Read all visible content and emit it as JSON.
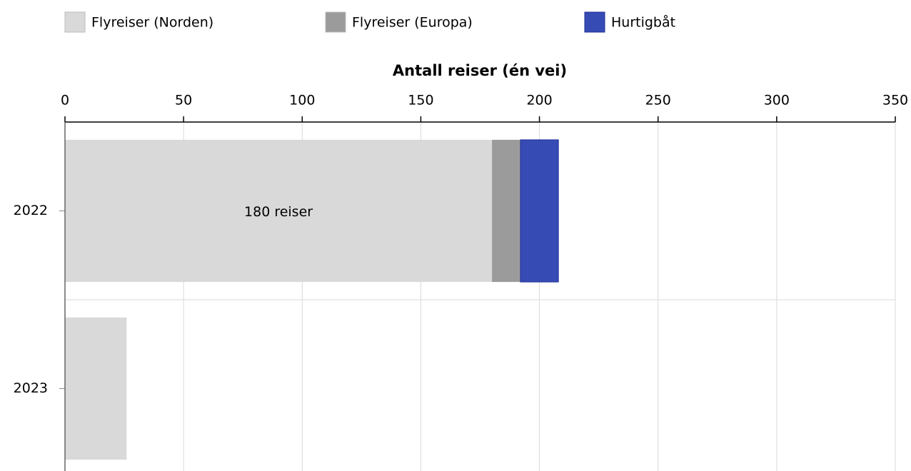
{
  "chart_data": {
    "type": "stacked-barh",
    "xlabel": "Antall reiser (én vei)",
    "categories": [
      "2022",
      "2023"
    ],
    "series": [
      {
        "name": "Flyreiser (Norden)",
        "color": "#d9d9d9",
        "values": [
          180,
          26
        ],
        "value_labels": [
          "180 reiser",
          null
        ]
      },
      {
        "name": "Flyreiser (Europa)",
        "color": "#9b9b9b",
        "values": [
          12,
          0
        ]
      },
      {
        "name": "Hurtigbåt",
        "color": "#364bb3",
        "values": [
          16,
          0
        ]
      }
    ],
    "xlim": [
      0,
      350
    ],
    "xticks": [
      0,
      50,
      100,
      150,
      200,
      250,
      300,
      350
    ],
    "grid": true,
    "legend": "top"
  }
}
